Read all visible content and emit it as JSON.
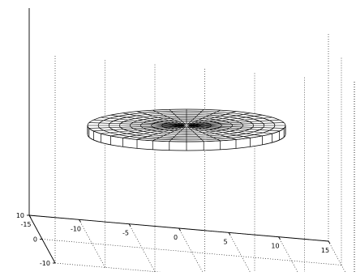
{
  "chart_data": {
    "type": "surface",
    "title": "",
    "xlabel": "",
    "ylabel": "",
    "zlabel": "",
    "xlim": [
      -15,
      15
    ],
    "ylim": [
      -10,
      10
    ],
    "grid": true,
    "x_ticks": [
      "-15",
      "-10",
      "-5",
      "0",
      "5",
      "10",
      "15"
    ],
    "y_ticks": [
      "10",
      "0",
      "-10"
    ],
    "surface": {
      "shape": "disk",
      "outer_radius": 15,
      "inner_radius": 0.5,
      "radial_rings": 9,
      "angular_segments": 36,
      "z_level": 0
    },
    "colors": {
      "mesh": "#000000",
      "face": "#ffffff",
      "grid": "#000000"
    }
  }
}
